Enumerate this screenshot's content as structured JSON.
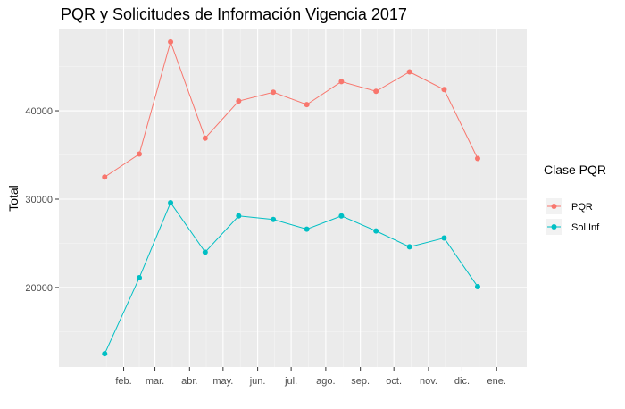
{
  "chart_data": {
    "type": "line",
    "title": "PQR y Solicitudes de Información Vigencia 2017",
    "xlabel": "",
    "ylabel": "Total",
    "x_tick_labels": [
      "feb.",
      "mar.",
      "abr.",
      "may.",
      "jun.",
      "jul.",
      "ago.",
      "sep.",
      "oct.",
      "nov.",
      "dic.",
      "ene."
    ],
    "x": [
      "2017-01-15",
      "2017-02-15",
      "2017-03-15",
      "2017-04-15",
      "2017-05-15",
      "2017-06-15",
      "2017-07-15",
      "2017-08-15",
      "2017-09-15",
      "2017-10-15",
      "2017-11-15",
      "2017-12-15"
    ],
    "y_ticks": [
      20000,
      30000,
      40000
    ],
    "ylim": [
      11000,
      49200
    ],
    "xlim": [
      "2017-01-01",
      "2018-01-01"
    ],
    "grid": true,
    "legend": {
      "title": "Clase PQR",
      "position": "right"
    },
    "series": [
      {
        "name": "PQR",
        "color": "#F8766D",
        "values": [
          32500,
          35100,
          47800,
          36900,
          41100,
          42100,
          40700,
          43300,
          42200,
          44400,
          42400,
          34600
        ]
      },
      {
        "name": "Sol Inf",
        "color": "#00BFC4",
        "values": [
          12500,
          21100,
          29600,
          24000,
          28100,
          27700,
          26600,
          28100,
          26400,
          24600,
          25600,
          20100
        ]
      }
    ]
  }
}
